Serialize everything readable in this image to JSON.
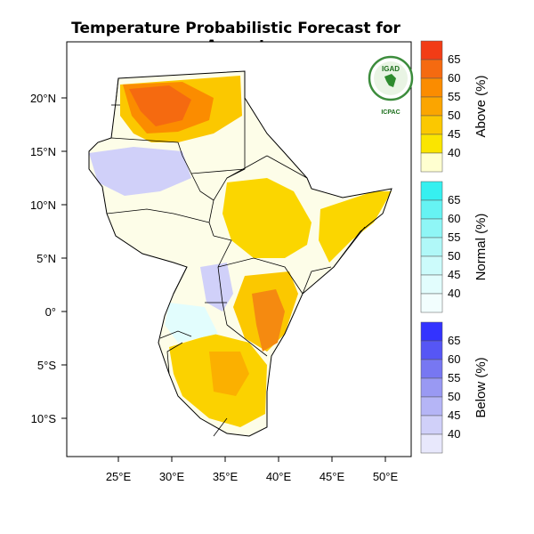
{
  "title": "Temperature Probabilistic Forecast for August",
  "map": {
    "lat_ticks": [
      "20°N",
      "15°N",
      "10°N",
      "5°N",
      "0°",
      "5°S",
      "10°S"
    ],
    "lon_ticks": [
      "25°E",
      "30°E",
      "35°E",
      "40°E",
      "45°E",
      "50°E"
    ]
  },
  "colorbars": [
    {
      "title": "Above (%)",
      "levels": [
        "65",
        "60",
        "55",
        "50",
        "45",
        "40"
      ],
      "colors": [
        "#f23c16",
        "#f56a10",
        "#fb8c00",
        "#fba500",
        "#fbc800",
        "#fae500",
        "#ffffd0"
      ]
    },
    {
      "title": "Normal (%)",
      "levels": [
        "65",
        "60",
        "55",
        "50",
        "45",
        "40"
      ],
      "colors": [
        "#36f0f0",
        "#66f3f3",
        "#8ff6f6",
        "#b0f8f8",
        "#ccfbfb",
        "#e2fdfd",
        "#f2fefe"
      ]
    },
    {
      "title": "Below (%)",
      "levels": [
        "65",
        "60",
        "55",
        "50",
        "45",
        "40"
      ],
      "colors": [
        "#3333ff",
        "#5656f5",
        "#7777f2",
        "#9999f3",
        "#b5b5f6",
        "#d0d0f9",
        "#e8e8fc"
      ]
    }
  ],
  "logo": {
    "text_top": "IGAD",
    "text_bottom": "ICPAC"
  }
}
